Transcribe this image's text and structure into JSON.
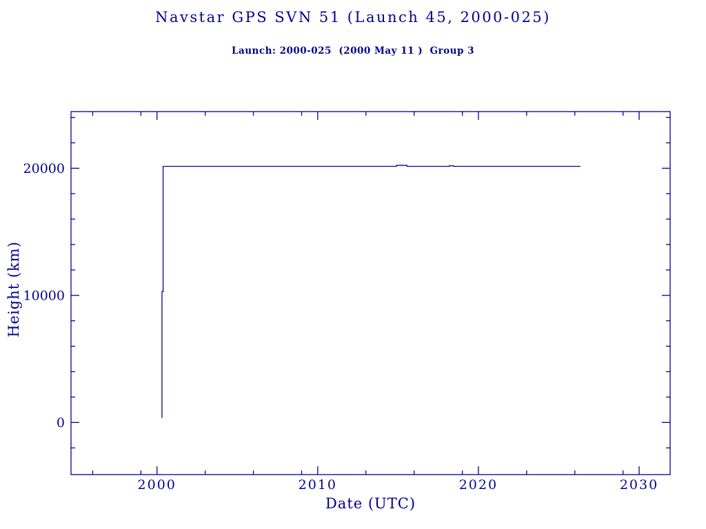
{
  "page": {
    "background": "#ffffff",
    "accent_color": "#000090"
  },
  "chart_data": {
    "type": "line",
    "title": "Navstar GPS SVN 51 (Launch 45, 2000-025)",
    "subtitle": "Launch: 2000-025  (2000 May 11 )  Group 3",
    "xlabel": "Date (UTC)",
    "ylabel": "Height (km)",
    "x_range": [
      1994.65,
      2031.93
    ],
    "y_range": [
      -4100,
      24460
    ],
    "x_major_ticks": [
      {
        "value": 2000,
        "label": "2000"
      },
      {
        "value": 2010,
        "label": "2010"
      },
      {
        "value": 2020,
        "label": "2020"
      },
      {
        "value": 2030,
        "label": "2030"
      }
    ],
    "x_minor_ticks": [
      1996,
      1999,
      2003,
      2006,
      2009,
      2013,
      2016,
      2019,
      2023,
      2026,
      2029
    ],
    "y_major_ticks": [
      {
        "value": 0,
        "label": "0"
      },
      {
        "value": 10000,
        "label": "10000"
      },
      {
        "value": 20000,
        "label": "20000"
      }
    ],
    "y_minor_ticks": [
      -2000,
      2000,
      4000,
      6000,
      8000,
      12000,
      14000,
      16000,
      18000,
      22000,
      24000
    ],
    "grid": false,
    "legend": false,
    "line_color": "#000090",
    "frame_color": "#000090",
    "series": [
      {
        "name": "Height (km)",
        "points": [
          [
            2000.31,
            360
          ],
          [
            2000.31,
            10300
          ],
          [
            2000.38,
            10300
          ],
          [
            2000.38,
            20150
          ],
          [
            2014.9,
            20150
          ],
          [
            2014.9,
            20230
          ],
          [
            2015.55,
            20230
          ],
          [
            2015.55,
            20150
          ],
          [
            2018.2,
            20150
          ],
          [
            2018.2,
            20200
          ],
          [
            2018.45,
            20200
          ],
          [
            2018.45,
            20150
          ],
          [
            2026.35,
            20150
          ]
        ]
      }
    ]
  }
}
